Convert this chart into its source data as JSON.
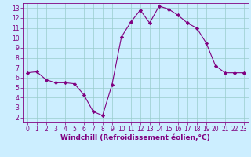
{
  "x": [
    0,
    1,
    2,
    3,
    4,
    5,
    6,
    7,
    8,
    9,
    10,
    11,
    12,
    13,
    14,
    15,
    16,
    17,
    18,
    19,
    20,
    21,
    22,
    23
  ],
  "y": [
    6.5,
    6.6,
    5.8,
    5.5,
    5.5,
    5.4,
    4.3,
    2.6,
    2.2,
    5.3,
    10.1,
    11.6,
    12.8,
    11.5,
    13.2,
    12.9,
    12.3,
    11.5,
    11.0,
    9.5,
    7.2,
    6.5,
    6.5,
    6.5
  ],
  "line_color": "#800080",
  "marker": "D",
  "marker_size": 2.2,
  "bg_color": "#cceeff",
  "grid_color": "#99cccc",
  "xlabel": "Windchill (Refroidissement éolien,°C)",
  "ylabel": "",
  "xlim": [
    -0.5,
    23.5
  ],
  "ylim": [
    1.5,
    13.5
  ],
  "yticks": [
    2,
    3,
    4,
    5,
    6,
    7,
    8,
    9,
    10,
    11,
    12,
    13
  ],
  "xticks": [
    0,
    1,
    2,
    3,
    4,
    5,
    6,
    7,
    8,
    9,
    10,
    11,
    12,
    13,
    14,
    15,
    16,
    17,
    18,
    19,
    20,
    21,
    22,
    23
  ],
  "tick_fontsize": 5.5,
  "label_fontsize": 6.5,
  "spine_color": "#800080",
  "line_width": 0.8
}
